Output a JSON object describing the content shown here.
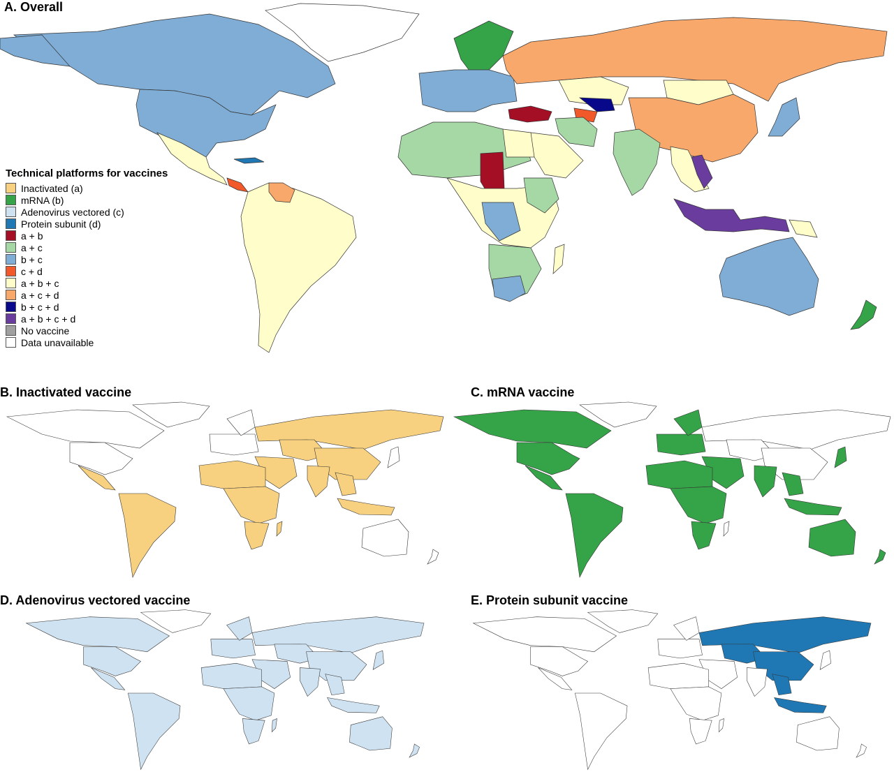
{
  "panels": {
    "a": {
      "title": "A. Overall"
    },
    "b": {
      "title": "B. Inactivated vaccine",
      "fill": "#F7D180"
    },
    "c": {
      "title": "C. mRNA vaccine",
      "fill": "#35A347"
    },
    "d": {
      "title": "D. Adenovirus vectored vaccine",
      "fill": "#CFE2F1"
    },
    "e": {
      "title": "E. Protein subunit vaccine",
      "fill": "#1F78B4"
    }
  },
  "legend": {
    "title": "Technical platforms for vaccines",
    "items": [
      {
        "label": "Inactivated (a)",
        "color": "#F7D180"
      },
      {
        "label": "mRNA (b)",
        "color": "#35A347"
      },
      {
        "label": "Adenovirus vectored (c)",
        "color": "#CFE2F1"
      },
      {
        "label": "Protein subunit (d)",
        "color": "#1F78B4"
      },
      {
        "label": "a + b",
        "color": "#A50F26"
      },
      {
        "label": "a + c",
        "color": "#A6D8A5"
      },
      {
        "label": "b + c",
        "color": "#7FADD5"
      },
      {
        "label": "c + d",
        "color": "#F1582A"
      },
      {
        "label": "a + b + c",
        "color": "#FFFDC9"
      },
      {
        "label": "a + c + d",
        "color": "#F9A86B"
      },
      {
        "label": "b + c + d",
        "color": "#08098A"
      },
      {
        "label": "a + b + c + d",
        "color": "#6A3C9E"
      },
      {
        "label": "No vaccine",
        "color": "#A0A0A0"
      },
      {
        "label": "Data unavailable",
        "color": "#FFFFFF"
      }
    ]
  },
  "map_colors": {
    "outline": "#333333",
    "unavailable": "#FFFFFF"
  }
}
